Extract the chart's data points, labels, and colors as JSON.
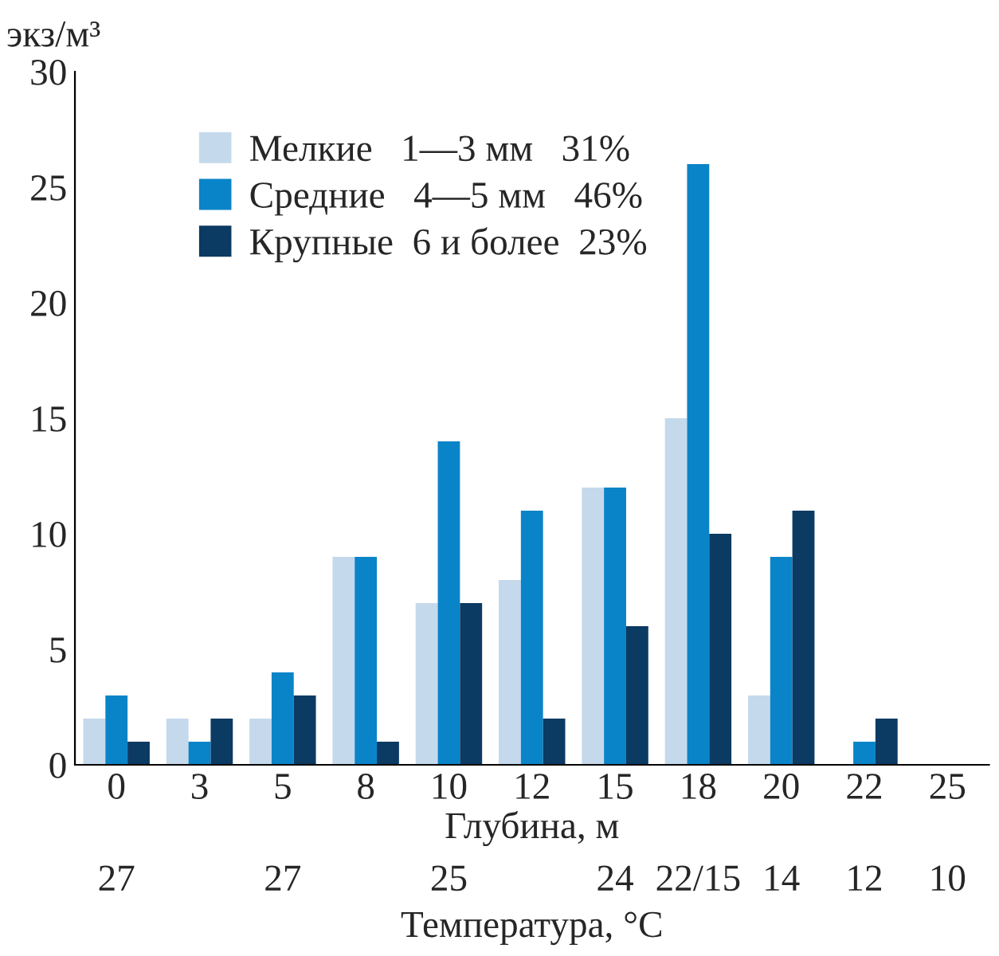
{
  "chart_data": {
    "type": "bar",
    "ylabel": "экз/м³",
    "xlabel": "Глубина, м",
    "categories": [
      "0",
      "3",
      "5",
      "8",
      "10",
      "12",
      "15",
      "18",
      "20",
      "22",
      "25"
    ],
    "series": [
      {
        "name": "Мелкие   1—3 мм   31%",
        "color": "#c5d9ec",
        "values": [
          2,
          2,
          2,
          9,
          7,
          8,
          12,
          15,
          3,
          0,
          0
        ]
      },
      {
        "name": "Средние   4—5 мм   46%",
        "color": "#0a84c8",
        "values": [
          3,
          1,
          4,
          9,
          14,
          11,
          12,
          26,
          9,
          1,
          0
        ]
      },
      {
        "name": "Крупные  6 и более  23%",
        "color": "#0b3a63",
        "values": [
          1,
          2,
          3,
          1,
          7,
          2,
          6,
          10,
          11,
          2,
          0
        ]
      }
    ],
    "ylim": [
      0,
      30
    ],
    "yticks": [
      0,
      5,
      10,
      15,
      20,
      25,
      30
    ],
    "grid": false,
    "legend": "top left",
    "annotations": [
      "27",
      "27",
      "25",
      "24",
      "22/15",
      "14",
      "12",
      "10",
      "Температура, °C"
    ]
  }
}
